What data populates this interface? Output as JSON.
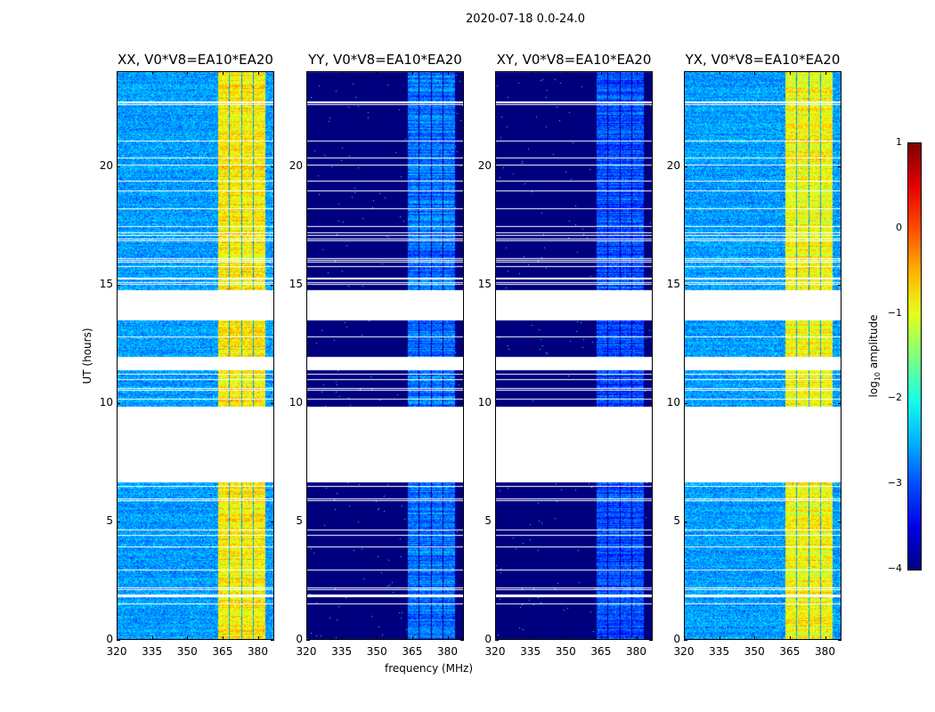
{
  "suptitle": "2020-07-18 0.0-24.0",
  "chart_data": {
    "type": "heatmap",
    "title": "2020-07-18 0.0-24.0",
    "xlabel": "frequency (MHz)",
    "ylabel": "UT (hours)",
    "xlim": [
      320,
      387
    ],
    "ylim": [
      0,
      24
    ],
    "xticks": [
      "320",
      "335",
      "350",
      "365",
      "380"
    ],
    "yticks": [
      "0",
      "5",
      "10",
      "15",
      "20"
    ],
    "colorbar": {
      "label": "log10 amplitude",
      "label_main": "log",
      "label_sub": "10",
      "label_rest": " amplitude",
      "range": [
        -4,
        1
      ],
      "ticks": [
        "1",
        "0",
        "−1",
        "−2",
        "−3",
        "−4"
      ]
    },
    "flagged_time_ranges_hours": [
      [
        6.65,
        9.85
      ],
      [
        11.4,
        11.95
      ],
      [
        13.52,
        14.78
      ]
    ],
    "bright_band_mhz": [
      362.5,
      383
    ],
    "panels": [
      {
        "title": "XX, V0*V8=EA10*EA20",
        "background_log_amp": -2.6,
        "band_log_amp": -0.8
      },
      {
        "title": "YY, V0*V8=EA10*EA20",
        "background_log_amp": -4.0,
        "band_log_amp": -2.8
      },
      {
        "title": "XY, V0*V8=EA10*EA20",
        "background_log_amp": -4.0,
        "band_log_amp": -3.0
      },
      {
        "title": "YX, V0*V8=EA10*EA20",
        "background_log_amp": -2.6,
        "band_log_amp": -0.9
      }
    ]
  }
}
